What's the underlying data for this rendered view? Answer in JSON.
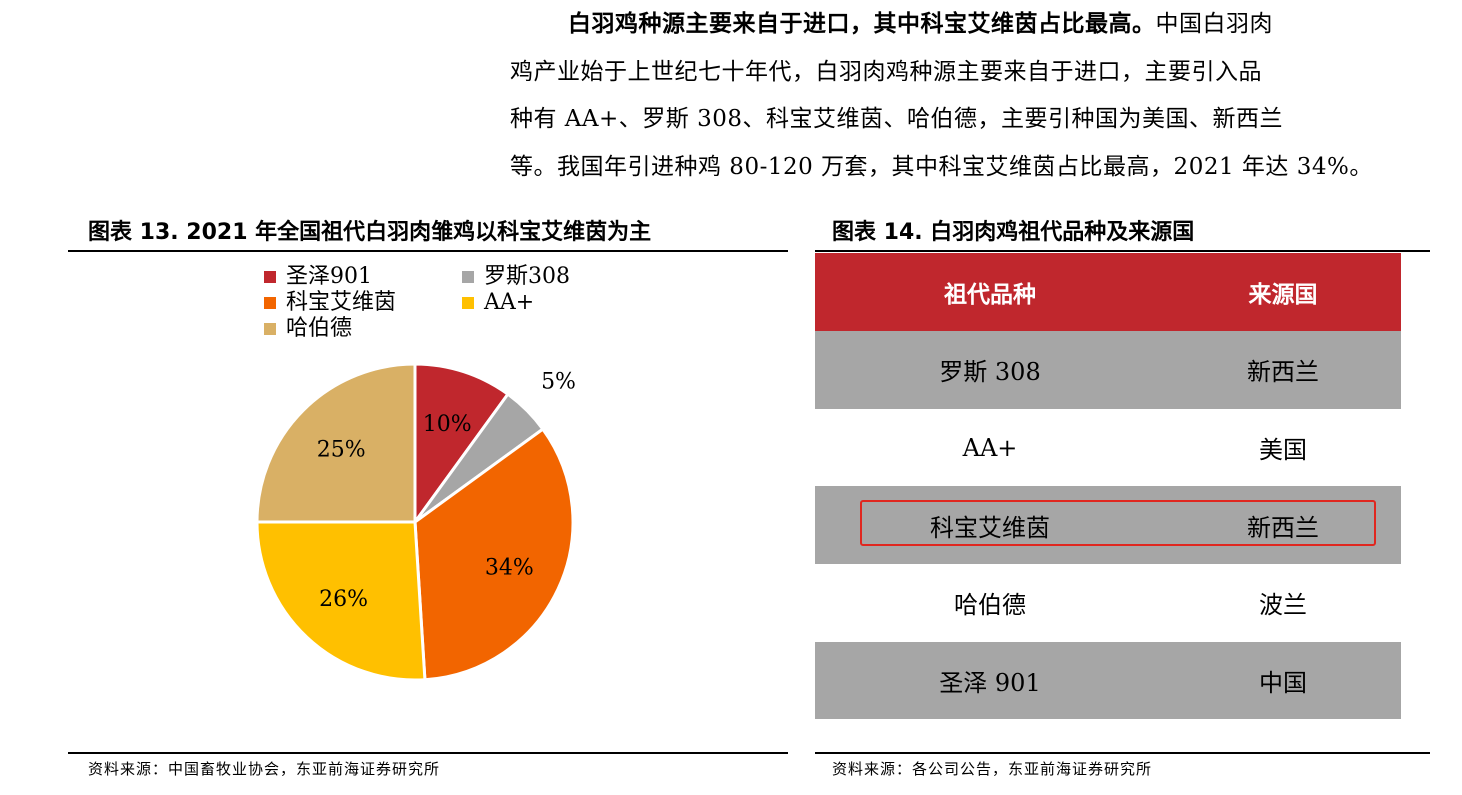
{
  "paragraph": {
    "lead": "白羽鸡种源主要来自于进口，其中科宝艾维茵占比最高。",
    "line1_rest": "中国白羽肉",
    "line2": "鸡产业始于上世纪七十年代，白羽肉鸡种源主要来自于进口，主要引入品",
    "line3": "种有 AA+、罗斯 308、科宝艾维茵、哈伯德，主要引种国为美国、新西兰",
    "line4": "等。我国年引进种鸡 80-120 万套，其中科宝艾维茵占比最高，2021 年达 34%。"
  },
  "figure13": {
    "title": "图表 13. 2021 年全国祖代白羽肉雏鸡以科宝艾维茵为主",
    "source": "资料来源：中国畜牧业协会，东亚前海证券研究所"
  },
  "chart_data": {
    "type": "pie",
    "title": "",
    "legend_placement": "top-left",
    "slices": [
      {
        "name": "圣泽901",
        "value": 10,
        "label": "10%",
        "color": "#c0272d"
      },
      {
        "name": "罗斯308",
        "value": 5,
        "label": "5%",
        "color": "#a6a6a6"
      },
      {
        "name": "科宝艾维茵",
        "value": 34,
        "label": "34%",
        "color": "#f26500"
      },
      {
        "name": "AA+",
        "value": 26,
        "label": "26%",
        "color": "#ffc000"
      },
      {
        "name": "哈伯德",
        "value": 25,
        "label": "25%",
        "color": "#d9b065"
      }
    ]
  },
  "figure14": {
    "title": "图表 14. 白羽肉鸡祖代品种及来源国",
    "headers": [
      "祖代品种",
      "来源国"
    ],
    "rows": [
      {
        "breed": "罗斯 308",
        "country": "新西兰"
      },
      {
        "breed": "AA+",
        "country": "美国"
      },
      {
        "breed": "科宝艾维茵",
        "country": "新西兰"
      },
      {
        "breed": "哈伯德",
        "country": "波兰"
      },
      {
        "breed": "圣泽 901",
        "country": "中国"
      }
    ],
    "highlighted_row": 2,
    "highlight_color": "#e0271f",
    "header_color": "#c0272d",
    "source": "资料来源：各公司公告，东亚前海证券研究所"
  }
}
